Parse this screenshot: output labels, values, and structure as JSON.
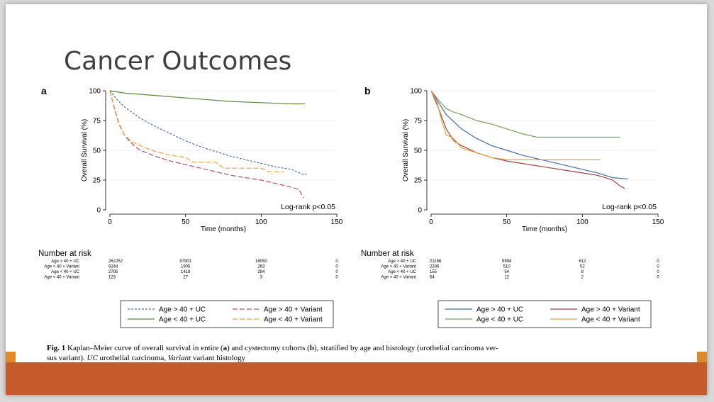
{
  "slide": {
    "title": "Cancer Outcomes",
    "accent_color": "#c55a2a"
  },
  "caption": {
    "fig_label": "Fig. 1",
    "text_1": " Kaplan–Meier curve of overall survival in entire (",
    "bold_a": "a",
    "text_2": ") and cystectomy cohorts (",
    "bold_b": "b",
    "text_3": "), stratified by age and histology (urothelial carcinoma ver-",
    "text_4": "sus variant). ",
    "italic_uc": "UC",
    "text_5": " urothelial carcinoma, ",
    "italic_variant": "Variant",
    "text_6": " variant histology"
  },
  "chart_data": [
    {
      "type": "line",
      "panel": "a",
      "xlabel": "Time (months)",
      "ylabel": "Overall Survival (%)",
      "xlim": [
        0,
        150
      ],
      "ylim": [
        0,
        100
      ],
      "xticks": [
        "0",
        "50",
        "100",
        "150"
      ],
      "yticks": [
        "0",
        "25",
        "50",
        "75",
        "100"
      ],
      "annotation": "Log-rank p<0.05",
      "series": [
        {
          "name": "Age > 40 + UC",
          "color": "#4a6fb5",
          "dash": "dashed",
          "x": [
            0,
            5,
            10,
            20,
            30,
            40,
            50,
            60,
            70,
            80,
            90,
            100,
            110,
            120,
            127,
            130
          ],
          "y": [
            100,
            92,
            86,
            77,
            70,
            64,
            58,
            53,
            49,
            45,
            42,
            39,
            36,
            34,
            30,
            30
          ]
        },
        {
          "name": "Age > 40 + Variant",
          "color": "#b0506a",
          "dash": "longdash",
          "x": [
            0,
            3,
            6,
            10,
            15,
            20,
            30,
            40,
            50,
            60,
            70,
            80,
            90,
            100,
            110,
            120,
            125,
            128
          ],
          "y": [
            100,
            85,
            72,
            62,
            55,
            50,
            45,
            41,
            38,
            35,
            32,
            29,
            27,
            25,
            22,
            19,
            17,
            10
          ]
        },
        {
          "name": "Age < 40 + UC",
          "color": "#5b8a3a",
          "dash": "solid",
          "x": [
            0,
            10,
            20,
            40,
            60,
            80,
            100,
            120,
            129
          ],
          "y": [
            100,
            98,
            97,
            95,
            93,
            91,
            90,
            89,
            89
          ]
        },
        {
          "name": "Age < 40 + Variant",
          "color": "#f0a030",
          "dash": "longdash",
          "x": [
            0,
            3,
            6,
            10,
            15,
            20,
            30,
            40,
            50,
            55,
            70,
            75,
            80,
            90,
            100,
            105,
            115
          ],
          "y": [
            100,
            86,
            73,
            62,
            57,
            54,
            49,
            46,
            44,
            40,
            40,
            35,
            35,
            35,
            35,
            32,
            32
          ]
        }
      ],
      "risk_table": {
        "header": "Number at risk",
        "columns_x": [
          0,
          50,
          100,
          150
        ],
        "rows": [
          {
            "label": "Age > 40 + UC",
            "values": [
              "262252",
              "97901",
              "16050",
              "0"
            ]
          },
          {
            "label": "Age > 40 + Variant",
            "values": [
              "9244",
              "1905",
              "263",
              "0"
            ]
          },
          {
            "label": "Age < 40 + UC",
            "values": [
              "2795",
              "1418",
              "284",
              "0"
            ]
          },
          {
            "label": "Age < 40 + Variant",
            "values": [
              "123",
              "27",
              "3",
              "0"
            ]
          }
        ]
      }
    },
    {
      "type": "line",
      "panel": "b",
      "xlabel": "Time (months)",
      "ylabel": "Overall Survival (%)",
      "xlim": [
        0,
        150
      ],
      "ylim": [
        0,
        100
      ],
      "xticks": [
        "0",
        "50",
        "100",
        "150"
      ],
      "yticks": [
        "0",
        "25",
        "50",
        "75",
        "100"
      ],
      "annotation": "Log-rank p<0.05",
      "series": [
        {
          "name": "Age > 40 + UC",
          "color": "#3f6ea8",
          "dash": "solid",
          "x": [
            0,
            5,
            10,
            20,
            30,
            40,
            50,
            60,
            70,
            80,
            90,
            100,
            110,
            120,
            130
          ],
          "y": [
            100,
            90,
            80,
            68,
            60,
            54,
            50,
            46,
            43,
            40,
            37,
            34,
            31,
            27,
            26
          ]
        },
        {
          "name": "Age > 40 + Variant",
          "color": "#a04048",
          "dash": "solid",
          "x": [
            0,
            5,
            10,
            15,
            20,
            30,
            40,
            50,
            60,
            70,
            80,
            90,
            100,
            110,
            115,
            120,
            125,
            128
          ],
          "y": [
            100,
            85,
            68,
            58,
            54,
            48,
            44,
            41,
            39,
            37,
            35,
            33,
            31,
            29,
            27,
            25,
            20,
            18
          ]
        },
        {
          "name": "Age < 40 + UC",
          "color": "#7aa058",
          "dash": "solid",
          "x": [
            0,
            5,
            10,
            15,
            20,
            30,
            40,
            50,
            55,
            60,
            70,
            80,
            100,
            120,
            125
          ],
          "y": [
            100,
            92,
            85,
            82,
            80,
            75,
            72,
            68,
            66,
            64,
            61,
            61,
            61,
            61,
            61
          ]
        },
        {
          "name": "Age < 40 + Variant",
          "color": "#f0a030",
          "dash": "solid",
          "x": [
            0,
            4,
            7,
            10,
            15,
            20,
            30,
            40,
            50,
            60,
            70,
            90,
            110,
            112
          ],
          "y": [
            100,
            90,
            75,
            63,
            60,
            52,
            48,
            44,
            42,
            42,
            42,
            42,
            42,
            42
          ]
        }
      ],
      "risk_table": {
        "header": "Number at risk",
        "columns_x": [
          0,
          50,
          100,
          150
        ],
        "rows": [
          {
            "label": "Age > 40 + UC",
            "values": [
              "21156",
              "5994",
              "612",
              "0"
            ]
          },
          {
            "label": "Age > 40 + Variant",
            "values": [
              "2336",
              "510",
              "52",
              "0"
            ]
          },
          {
            "label": "Age < 40 + UC",
            "values": [
              "155",
              "54",
              "8",
              "0"
            ]
          },
          {
            "label": "Age < 40 + Variant",
            "values": [
              "54",
              "12",
              "2",
              "0"
            ]
          }
        ]
      }
    }
  ]
}
